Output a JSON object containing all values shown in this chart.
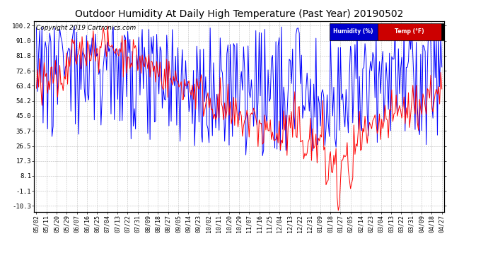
{
  "title": "Outdoor Humidity At Daily High Temperature (Past Year) 20190502",
  "copyright": "Copyright 2019 Cartronics.com",
  "ylabel_ticks": [
    100.2,
    91.0,
    81.8,
    72.6,
    63.4,
    54.2,
    45.0,
    35.7,
    26.5,
    17.3,
    8.1,
    -1.1,
    -10.3
  ],
  "ylim": [
    -14,
    103
  ],
  "legend_humidity": "Humidity (%)",
  "legend_temp": "Temp (°F)",
  "humidity_color": "#0000ff",
  "temp_color": "#ff0000",
  "background_color": "#ffffff",
  "grid_color": "#bbbbbb",
  "title_fontsize": 10,
  "copyright_fontsize": 6.5,
  "tick_fontsize": 6.5,
  "x_labels": [
    "05/02",
    "05/11",
    "05/20",
    "05/29",
    "06/07",
    "06/16",
    "06/25",
    "07/04",
    "07/13",
    "07/22",
    "07/31",
    "08/09",
    "08/18",
    "08/27",
    "09/05",
    "09/14",
    "09/23",
    "10/02",
    "10/11",
    "10/20",
    "10/29",
    "11/07",
    "11/16",
    "11/25",
    "12/04",
    "12/13",
    "12/22",
    "12/31",
    "01/09",
    "01/18",
    "01/27",
    "02/05",
    "02/14",
    "02/23",
    "03/04",
    "03/13",
    "03/22",
    "03/31",
    "04/09",
    "04/18",
    "04/27"
  ]
}
